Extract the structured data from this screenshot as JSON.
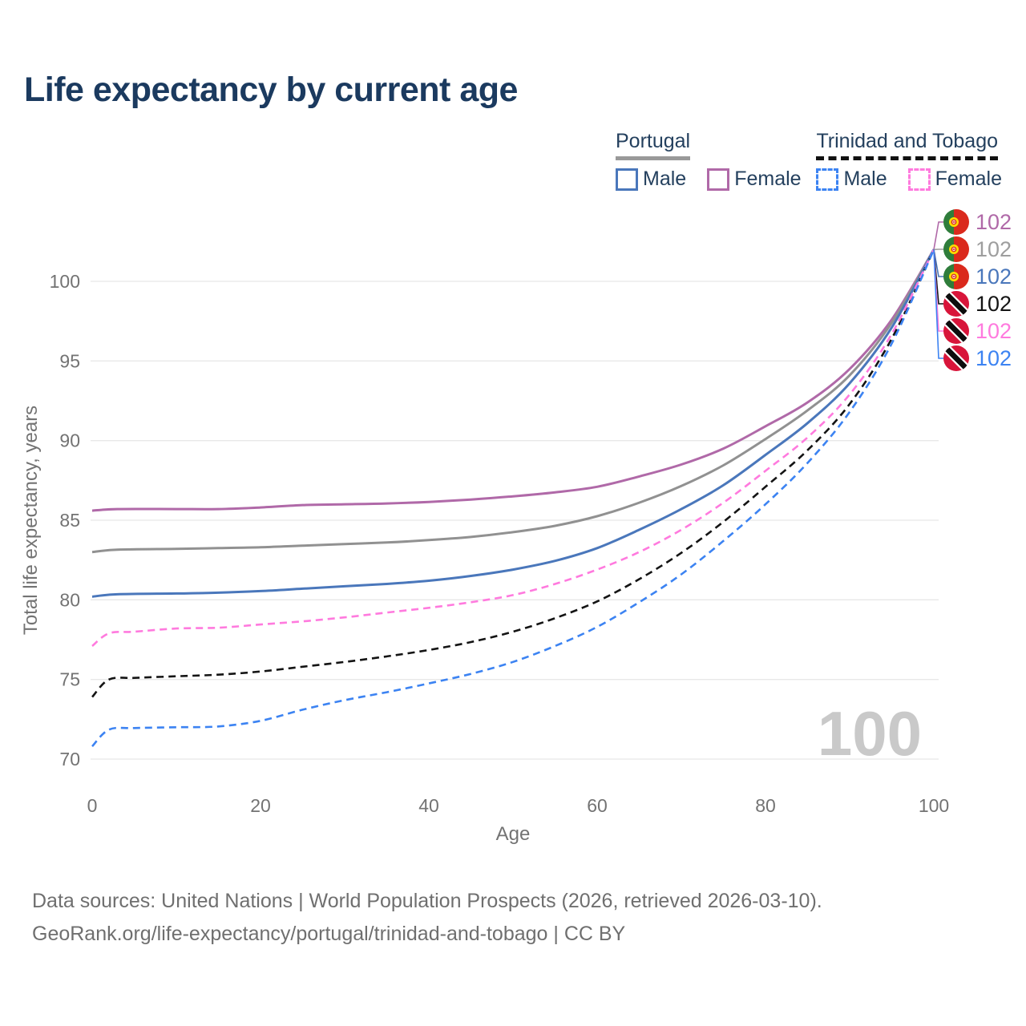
{
  "page": {
    "title": "Life expectancy by current age"
  },
  "legend": {
    "groups": [
      {
        "label": "Portugal",
        "underline_style": "solid",
        "underline_color": "#999999",
        "items": [
          {
            "label": "Male",
            "color": "#4a77bb",
            "dash": "solid"
          },
          {
            "label": "Female",
            "color": "#b069a8",
            "dash": "solid"
          }
        ]
      },
      {
        "label": "Trinidad and Tobago",
        "underline_style": "dashed",
        "underline_color": "#111111",
        "items": [
          {
            "label": "Male",
            "color": "#3c83f2",
            "dash": "dashed"
          },
          {
            "label": "Female",
            "color": "#ff7ade",
            "dash": "dashed"
          }
        ]
      }
    ]
  },
  "chart_data": {
    "type": "line",
    "title": "Life expectancy by current age",
    "xlabel": "Age",
    "ylabel": "Total life expectancy, years",
    "xlim": [
      0,
      100
    ],
    "ylim": [
      70,
      100
    ],
    "x_ticks": [
      0,
      20,
      40,
      60,
      80,
      100
    ],
    "y_ticks": [
      70,
      75,
      80,
      85,
      90,
      95,
      100
    ],
    "grid": "horizontal",
    "watermark": "100",
    "series": [
      {
        "id": "portugal-female",
        "name": "Portugal Female",
        "country": "Portugal",
        "sex": "Female",
        "color": "#b069a8",
        "dash": "solid",
        "points": [
          [
            0,
            85.6
          ],
          [
            3,
            85.7
          ],
          [
            10,
            85.7
          ],
          [
            15,
            85.7
          ],
          [
            20,
            85.8
          ],
          [
            25,
            85.95
          ],
          [
            30,
            86.0
          ],
          [
            35,
            86.05
          ],
          [
            40,
            86.15
          ],
          [
            45,
            86.3
          ],
          [
            50,
            86.5
          ],
          [
            55,
            86.75
          ],
          [
            60,
            87.1
          ],
          [
            65,
            87.75
          ],
          [
            70,
            88.5
          ],
          [
            75,
            89.5
          ],
          [
            80,
            90.9
          ],
          [
            85,
            92.4
          ],
          [
            90,
            94.5
          ],
          [
            95,
            97.6
          ],
          [
            100,
            102
          ]
        ]
      },
      {
        "id": "portugal-both",
        "name": "Portugal Both sexes",
        "country": "Portugal",
        "sex": "Both",
        "color": "#919191",
        "dash": "solid",
        "points": [
          [
            0,
            83.0
          ],
          [
            3,
            83.15
          ],
          [
            10,
            83.2
          ],
          [
            15,
            83.25
          ],
          [
            20,
            83.3
          ],
          [
            25,
            83.4
          ],
          [
            30,
            83.5
          ],
          [
            35,
            83.6
          ],
          [
            40,
            83.75
          ],
          [
            45,
            83.95
          ],
          [
            50,
            84.25
          ],
          [
            55,
            84.65
          ],
          [
            60,
            85.25
          ],
          [
            65,
            86.1
          ],
          [
            70,
            87.15
          ],
          [
            75,
            88.45
          ],
          [
            80,
            90.1
          ],
          [
            85,
            91.9
          ],
          [
            90,
            94.1
          ],
          [
            95,
            97.4
          ],
          [
            100,
            102
          ]
        ]
      },
      {
        "id": "portugal-male",
        "name": "Portugal Male",
        "country": "Portugal",
        "sex": "Male",
        "color": "#4a77bb",
        "dash": "solid",
        "points": [
          [
            0,
            80.2
          ],
          [
            3,
            80.35
          ],
          [
            10,
            80.4
          ],
          [
            15,
            80.45
          ],
          [
            20,
            80.55
          ],
          [
            25,
            80.7
          ],
          [
            30,
            80.85
          ],
          [
            35,
            81.0
          ],
          [
            40,
            81.2
          ],
          [
            45,
            81.5
          ],
          [
            50,
            81.9
          ],
          [
            55,
            82.45
          ],
          [
            60,
            83.25
          ],
          [
            65,
            84.4
          ],
          [
            70,
            85.7
          ],
          [
            75,
            87.2
          ],
          [
            80,
            89.1
          ],
          [
            85,
            91.1
          ],
          [
            90,
            93.6
          ],
          [
            95,
            97.1
          ],
          [
            100,
            102
          ]
        ]
      },
      {
        "id": "trinidad-both",
        "name": "Trinidad and Tobago Both sexes",
        "country": "Trinidad and Tobago",
        "sex": "Both",
        "color": "#141414",
        "dash": "dashed",
        "points": [
          [
            0,
            73.9
          ],
          [
            2,
            75.0
          ],
          [
            5,
            75.1
          ],
          [
            10,
            75.2
          ],
          [
            15,
            75.3
          ],
          [
            20,
            75.5
          ],
          [
            25,
            75.8
          ],
          [
            30,
            76.1
          ],
          [
            35,
            76.45
          ],
          [
            40,
            76.85
          ],
          [
            45,
            77.35
          ],
          [
            50,
            78.0
          ],
          [
            55,
            78.85
          ],
          [
            60,
            79.9
          ],
          [
            65,
            81.3
          ],
          [
            70,
            82.95
          ],
          [
            75,
            84.9
          ],
          [
            80,
            87.1
          ],
          [
            85,
            89.4
          ],
          [
            90,
            92.3
          ],
          [
            95,
            96.4
          ],
          [
            100,
            102
          ]
        ]
      },
      {
        "id": "trinidad-female",
        "name": "Trinidad and Tobago Female",
        "country": "Trinidad and Tobago",
        "sex": "Female",
        "color": "#ff7ade",
        "dash": "dashed",
        "points": [
          [
            0,
            77.1
          ],
          [
            2,
            77.9
          ],
          [
            5,
            78.0
          ],
          [
            10,
            78.2
          ],
          [
            15,
            78.25
          ],
          [
            20,
            78.45
          ],
          [
            25,
            78.65
          ],
          [
            30,
            78.9
          ],
          [
            35,
            79.2
          ],
          [
            40,
            79.5
          ],
          [
            45,
            79.85
          ],
          [
            50,
            80.3
          ],
          [
            55,
            81.0
          ],
          [
            60,
            81.9
          ],
          [
            65,
            83.0
          ],
          [
            70,
            84.4
          ],
          [
            75,
            86.1
          ],
          [
            80,
            88.1
          ],
          [
            85,
            90.2
          ],
          [
            90,
            92.9
          ],
          [
            95,
            96.7
          ],
          [
            100,
            102
          ]
        ]
      },
      {
        "id": "trinidad-male",
        "name": "Trinidad and Tobago Male",
        "country": "Trinidad and Tobago",
        "sex": "Male",
        "color": "#3c83f2",
        "dash": "dashed",
        "points": [
          [
            0,
            70.8
          ],
          [
            2,
            71.85
          ],
          [
            5,
            71.95
          ],
          [
            10,
            72.0
          ],
          [
            15,
            72.05
          ],
          [
            20,
            72.4
          ],
          [
            25,
            73.1
          ],
          [
            30,
            73.7
          ],
          [
            35,
            74.2
          ],
          [
            40,
            74.75
          ],
          [
            45,
            75.35
          ],
          [
            50,
            76.1
          ],
          [
            55,
            77.1
          ],
          [
            60,
            78.3
          ],
          [
            65,
            79.85
          ],
          [
            70,
            81.6
          ],
          [
            75,
            83.7
          ],
          [
            80,
            86.0
          ],
          [
            85,
            88.6
          ],
          [
            90,
            91.8
          ],
          [
            95,
            96.1
          ],
          [
            100,
            102
          ]
        ]
      }
    ],
    "end_labels": [
      {
        "flag": "portugal",
        "value": "102",
        "color": "#b069a8"
      },
      {
        "flag": "portugal",
        "value": "102",
        "color": "#9e9e9e"
      },
      {
        "flag": "portugal",
        "value": "102",
        "color": "#4a77bb"
      },
      {
        "flag": "trinidad",
        "value": "102",
        "color": "#141414"
      },
      {
        "flag": "trinidad",
        "value": "102",
        "color": "#ff7ade"
      },
      {
        "flag": "trinidad",
        "value": "102",
        "color": "#3c83f2"
      }
    ]
  },
  "footer": {
    "line1": "Data sources: United Nations | World Population Prospects (2026, retrieved 2026-03-10).",
    "line2": "GeoRank.org/life-expectancy/portugal/trinidad-and-tobago | CC BY"
  }
}
